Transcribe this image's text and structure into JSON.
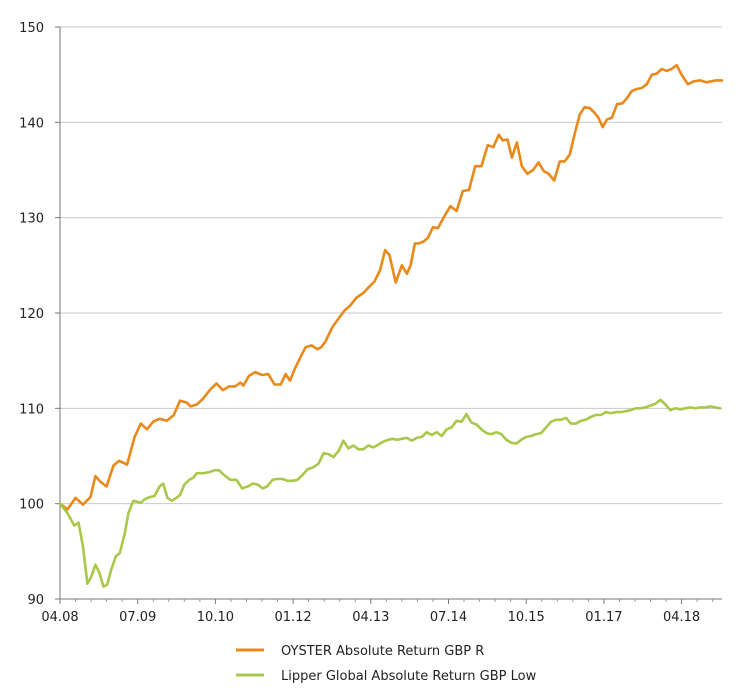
{
  "chart_data": {
    "type": "line",
    "title": "",
    "xlabel": "",
    "ylabel": "",
    "ylim": [
      90,
      150
    ],
    "yticks": [
      "90",
      "100",
      "110",
      "120",
      "130",
      "140",
      "150"
    ],
    "xticks": [
      "04.08",
      "07.09",
      "10.10",
      "01.12",
      "04.13",
      "07.14",
      "10.15",
      "01.17",
      "04.18"
    ],
    "grid": "horizontal",
    "legend_position": "bottom",
    "x_index_range": [
      0,
      10.65
    ],
    "series": [
      {
        "name": "OYSTER Absolute Return GBP R",
        "color": "#e8891a",
        "x": [
          0,
          0.12,
          0.25,
          0.37,
          0.49,
          0.57,
          0.65,
          0.75,
          0.86,
          0.95,
          1.08,
          1.2,
          1.3,
          1.4,
          1.5,
          1.6,
          1.72,
          1.83,
          1.93,
          2.04,
          2.1,
          2.2,
          2.3,
          2.36,
          2.42,
          2.52,
          2.62,
          2.72,
          2.82,
          2.9,
          2.95,
          3.04,
          3.14,
          3.25,
          3.35,
          3.45,
          3.55,
          3.63,
          3.7,
          3.78,
          3.87,
          3.95,
          4.05,
          4.14,
          4.2,
          4.27,
          4.38,
          4.49,
          4.57,
          4.67,
          4.77,
          4.88,
          4.98,
          5.06,
          5.15,
          5.23,
          5.3,
          5.4,
          5.5,
          5.58,
          5.64,
          5.71,
          5.77,
          5.85,
          5.92,
          6.0,
          6.08,
          6.18,
          6.28,
          6.38,
          6.48,
          6.58,
          6.68,
          6.78,
          6.88,
          6.97,
          7.06,
          7.12,
          7.2,
          7.27,
          7.35,
          7.43,
          7.52,
          7.61,
          7.7,
          7.78,
          7.86,
          7.95,
          8.04,
          8.12,
          8.2,
          8.28,
          8.36,
          8.44,
          8.52,
          8.6,
          8.66,
          8.73,
          8.8,
          8.88,
          8.96,
          9.05,
          9.13,
          9.2,
          9.28,
          9.36,
          9.44,
          9.52,
          9.6,
          9.68,
          9.76,
          9.84,
          9.92,
          10.0,
          10.1,
          10.2,
          10.3,
          10.4,
          10.48,
          10.55,
          10.65
        ],
        "values": [
          100.0,
          99.4,
          100.6,
          99.9,
          100.7,
          102.9,
          102.3,
          101.8,
          104.0,
          104.5,
          104.1,
          107.0,
          108.4,
          107.8,
          108.6,
          108.9,
          108.7,
          109.3,
          110.8,
          110.6,
          110.2,
          110.4,
          111.0,
          111.5,
          112.0,
          112.6,
          111.9,
          112.3,
          112.3,
          112.7,
          112.4,
          113.4,
          113.8,
          113.5,
          113.6,
          112.5,
          112.5,
          113.6,
          112.9,
          114.2,
          115.4,
          116.4,
          116.6,
          116.2,
          116.4,
          117.0,
          118.5,
          119.5,
          120.2,
          120.8,
          121.6,
          122.1,
          122.8,
          123.3,
          124.5,
          126.6,
          126.1,
          123.2,
          125.0,
          124.1,
          125.0,
          127.3,
          127.3,
          127.5,
          127.9,
          129.0,
          128.9,
          130.1,
          131.2,
          130.7,
          132.8,
          132.9,
          135.4,
          135.4,
          137.6,
          137.4,
          138.7,
          138.1,
          138.2,
          136.3,
          137.9,
          135.4,
          134.6,
          135.0,
          135.8,
          134.9,
          134.6,
          133.9,
          135.9,
          135.9,
          136.6,
          138.8,
          140.8,
          141.6,
          141.5,
          141.0,
          140.5,
          139.5,
          140.3,
          140.5,
          141.9,
          142.0,
          142.6,
          143.3,
          143.5,
          143.6,
          144.0,
          145.0,
          145.1,
          145.6,
          145.4,
          145.6,
          146.0,
          145.0,
          144.0,
          144.3,
          144.4,
          144.2,
          144.3,
          144.4,
          144.4
        ],
        "note": ""
      },
      {
        "name": "Lipper Global Absolute Return GBP Low",
        "color": "#a8c84a",
        "x": [
          0,
          0.12,
          0.23,
          0.3,
          0.37,
          0.44,
          0.5,
          0.57,
          0.63,
          0.7,
          0.76,
          0.82,
          0.9,
          0.96,
          1.04,
          1.1,
          1.18,
          1.25,
          1.3,
          1.37,
          1.45,
          1.52,
          1.6,
          1.66,
          1.73,
          1.8,
          1.87,
          1.93,
          2.0,
          2.08,
          2.14,
          2.2,
          2.3,
          2.4,
          2.48,
          2.56,
          2.64,
          2.74,
          2.84,
          2.93,
          3.02,
          3.1,
          3.18,
          3.26,
          3.33,
          3.42,
          3.5,
          3.58,
          3.66,
          3.74,
          3.82,
          3.9,
          3.98,
          4.07,
          4.16,
          4.24,
          4.32,
          4.4,
          4.48,
          4.56,
          4.64,
          4.72,
          4.8,
          4.88,
          4.96,
          5.04,
          5.12,
          5.2,
          5.28,
          5.35,
          5.42,
          5.5,
          5.58,
          5.66,
          5.74,
          5.82,
          5.9,
          5.98,
          6.06,
          6.14,
          6.22,
          6.3,
          6.38,
          6.46,
          6.54,
          6.62,
          6.7,
          6.78,
          6.86,
          6.94,
          7.02,
          7.1,
          7.18,
          7.26,
          7.34,
          7.42,
          7.5,
          7.58,
          7.66,
          7.74,
          7.82,
          7.9,
          7.98,
          8.06,
          8.14,
          8.22,
          8.3,
          8.38,
          8.46,
          8.54,
          8.62,
          8.7,
          8.78,
          8.86,
          8.94,
          9.02,
          9.1,
          9.18,
          9.26,
          9.34,
          9.42,
          9.5,
          9.58,
          9.66,
          9.74,
          9.82,
          9.9,
          9.98,
          10.06,
          10.14,
          10.22,
          10.3,
          10.38,
          10.46,
          10.54,
          10.62
        ],
        "values": [
          100.0,
          99.0,
          97.7,
          98.0,
          95.5,
          91.6,
          92.3,
          93.6,
          92.8,
          91.3,
          91.5,
          93.0,
          94.5,
          94.8,
          96.8,
          99.0,
          100.3,
          100.2,
          100.1,
          100.5,
          100.7,
          100.8,
          101.8,
          102.1,
          100.6,
          100.3,
          100.6,
          100.9,
          102.0,
          102.5,
          102.7,
          103.2,
          103.2,
          103.3,
          103.5,
          103.5,
          103.0,
          102.5,
          102.5,
          101.6,
          101.8,
          102.1,
          102.0,
          101.6,
          101.8,
          102.5,
          102.6,
          102.6,
          102.4,
          102.4,
          102.5,
          103.0,
          103.6,
          103.8,
          104.2,
          105.3,
          105.2,
          104.9,
          105.5,
          106.6,
          105.8,
          106.1,
          105.7,
          105.7,
          106.1,
          105.9,
          106.2,
          106.5,
          106.7,
          106.8,
          106.7,
          106.8,
          106.9,
          106.6,
          106.9,
          107.0,
          107.5,
          107.2,
          107.5,
          107.1,
          107.8,
          108.0,
          108.7,
          108.6,
          109.4,
          108.5,
          108.3,
          107.8,
          107.4,
          107.3,
          107.5,
          107.3,
          106.7,
          106.4,
          106.3,
          106.7,
          107.0,
          107.1,
          107.3,
          107.4,
          108.0,
          108.6,
          108.8,
          108.8,
          109.0,
          108.4,
          108.4,
          108.7,
          108.8,
          109.1,
          109.3,
          109.3,
          109.6,
          109.5,
          109.6,
          109.6,
          109.7,
          109.8,
          110.0,
          110.0,
          110.1,
          110.3,
          110.5,
          110.9,
          110.4,
          109.8,
          110.0,
          109.9,
          110.0,
          110.1,
          110.0,
          110.1,
          110.1,
          110.2,
          110.1,
          110.0
        ],
        "note": ""
      }
    ]
  }
}
